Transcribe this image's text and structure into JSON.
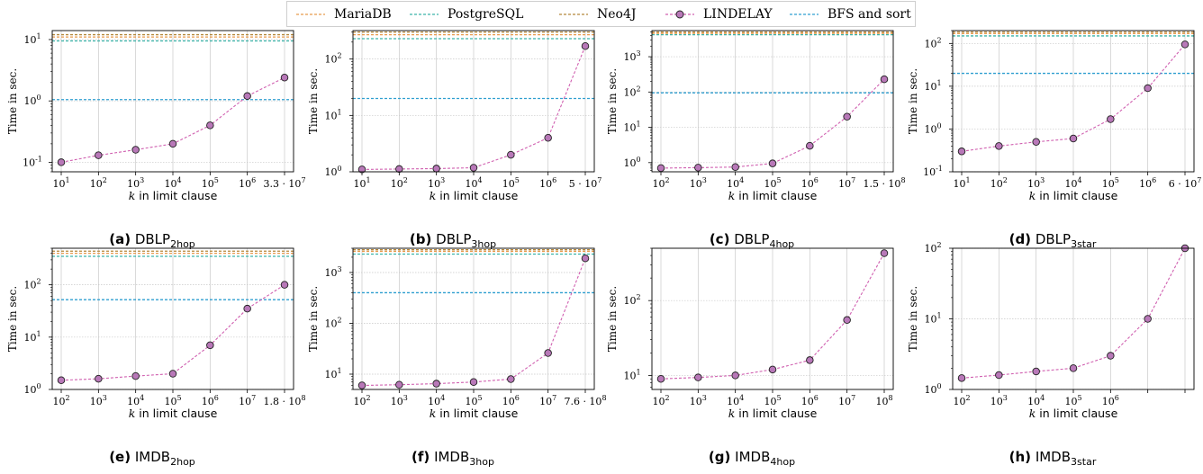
{
  "legend": {
    "items": [
      {
        "label": "MariaDB",
        "color": "#e89a4c",
        "style": "dashed"
      },
      {
        "label": "PostgreSQL",
        "color": "#3bb3a9",
        "style": "dashed"
      },
      {
        "label": "Neo4J",
        "color": "#b5873a",
        "style": "dashed"
      },
      {
        "label": "LINDELAY",
        "color": "#c060a0",
        "style": "dashed-marker"
      },
      {
        "label": "BFS and sort",
        "color": "#2f9fd0",
        "style": "dashed"
      }
    ]
  },
  "colors": {
    "lindelay_line": "#d060b0",
    "marker_fill": "#b878b8",
    "bfs": "#2f9fd0",
    "mariadb": "#e89a4c",
    "postgresql": "#3bb3a9",
    "neo4j": "#b5873a",
    "grid": "#c8c8c8"
  },
  "chart_data": [
    {
      "type": "line",
      "caption_letter": "(a)",
      "caption_name": "DBLP",
      "caption_sub": "2hop",
      "xlabel": "k in limit clause",
      "ylabel": "Time in sec.",
      "yscale": "log",
      "ylim": [
        0.07,
        14
      ],
      "ytick_exponents": [
        -1,
        0,
        1
      ],
      "x_tick_labels": [
        "10^1",
        "10^2",
        "10^3",
        "10^4",
        "10^5",
        "10^6",
        "3.3 · 10^7"
      ],
      "lindelay": [
        0.1,
        0.13,
        0.16,
        0.2,
        0.4,
        1.2,
        2.4
      ],
      "bfs_and_sort": 1.05,
      "mariadb": 11,
      "postgresql": 9.5,
      "neo4j": 12
    },
    {
      "type": "line",
      "caption_letter": "(b)",
      "caption_name": "DBLP",
      "caption_sub": "3hop",
      "xlabel": "k in limit clause",
      "ylabel": "Time in sec.",
      "yscale": "log",
      "ylim": [
        1,
        320
      ],
      "ytick_exponents": [
        0,
        1,
        2
      ],
      "x_tick_labels": [
        "10^1",
        "10^2",
        "10^3",
        "10^4",
        "10^5",
        "10^6",
        "5 · 10^7"
      ],
      "lindelay": [
        1.1,
        1.12,
        1.14,
        1.18,
        2.0,
        4.0,
        170
      ],
      "bfs_and_sort": 20,
      "mariadb": 270,
      "postgresql": 230,
      "neo4j": 300
    },
    {
      "type": "line",
      "caption_letter": "(c)",
      "caption_name": "DBLP",
      "caption_sub": "4hop",
      "xlabel": "k in limit clause",
      "ylabel": "Time in sec.",
      "yscale": "log",
      "ylim": [
        0.55,
        5500
      ],
      "ytick_exponents": [
        0,
        1,
        2,
        3
      ],
      "x_tick_labels": [
        "10^2",
        "10^3",
        "10^4",
        "10^5",
        "10^6",
        "10^7",
        "1.5 · 10^8"
      ],
      "lindelay": [
        0.7,
        0.72,
        0.75,
        0.95,
        3.0,
        20,
        230
      ],
      "bfs_and_sort": 95,
      "mariadb": 4600,
      "postgresql": 4200,
      "neo4j": 5000
    },
    {
      "type": "line",
      "caption_letter": "(d)",
      "caption_name": "DBLP",
      "caption_sub": "3star",
      "xlabel": "k in limit clause",
      "ylabel": "Time in sec.",
      "yscale": "log",
      "ylim": [
        0.1,
        200
      ],
      "ytick_exponents": [
        -1,
        0,
        1,
        2
      ],
      "x_tick_labels": [
        "10^1",
        "10^2",
        "10^3",
        "10^4",
        "10^5",
        "10^6",
        "6 · 10^7"
      ],
      "lindelay": [
        0.3,
        0.4,
        0.5,
        0.6,
        1.7,
        9,
        95
      ],
      "bfs_and_sort": 20,
      "mariadb": 170,
      "postgresql": 150,
      "neo4j": 185
    },
    {
      "type": "line",
      "caption_letter": "(e)",
      "caption_name": "IMDB",
      "caption_sub": "2hop",
      "xlabel": "k in limit clause",
      "ylabel": "Time in sec.",
      "yscale": "log",
      "ylim": [
        1,
        500
      ],
      "ytick_exponents": [
        0,
        1,
        2
      ],
      "x_tick_labels": [
        "10^2",
        "10^3",
        "10^4",
        "10^5",
        "10^6",
        "10^7",
        "1.8 · 10^8"
      ],
      "lindelay": [
        1.5,
        1.6,
        1.8,
        2.0,
        7,
        35,
        100
      ],
      "bfs_and_sort": 52,
      "mariadb": 400,
      "postgresql": 350,
      "neo4j": 440
    },
    {
      "type": "line",
      "caption_letter": "(f)",
      "caption_name": "IMDB",
      "caption_sub": "3hop",
      "xlabel": "k in limit clause",
      "ylabel": "Time in sec.",
      "yscale": "log",
      "ylim": [
        5,
        3000
      ],
      "ytick_exponents": [
        1,
        2,
        3
      ],
      "x_tick_labels": [
        "10^2",
        "10^3",
        "10^4",
        "10^5",
        "10^6",
        "10^7",
        "7.6 · 10^8"
      ],
      "lindelay": [
        6,
        6.2,
        6.5,
        7,
        8,
        26,
        1900
      ],
      "bfs_and_sort": 400,
      "mariadb": 2600,
      "postgresql": 2300,
      "neo4j": 2800
    },
    {
      "type": "line",
      "caption_letter": "(g)",
      "caption_name": "IMDB",
      "caption_sub": "4hop",
      "xlabel": "k in limit clause",
      "ylabel": "Time in sec.",
      "yscale": "log",
      "ylim": [
        6.5,
        500
      ],
      "ytick_exponents": [
        1,
        2
      ],
      "x_tick_labels": [
        "10^2",
        "10^3",
        "10^4",
        "10^5",
        "10^6",
        "10^7",
        "10^8"
      ],
      "lindelay": [
        9,
        9.4,
        10,
        12,
        16,
        55,
        430
      ]
    },
    {
      "type": "line",
      "caption_letter": "(h)",
      "caption_name": "IMDB",
      "caption_sub": "3star",
      "xlabel": "k in limit clause",
      "ylabel": "Time in sec.",
      "yscale": "log",
      "ylim": [
        1,
        100
      ],
      "ytick_exponents": [
        0,
        1,
        2
      ],
      "x_tick_labels": [
        "10^2",
        "10^3",
        "10^4",
        "10^5",
        "10^6",
        "",
        ""
      ],
      "lindelay": [
        1.45,
        1.6,
        1.8,
        2.0,
        3.0,
        10,
        100
      ]
    }
  ]
}
